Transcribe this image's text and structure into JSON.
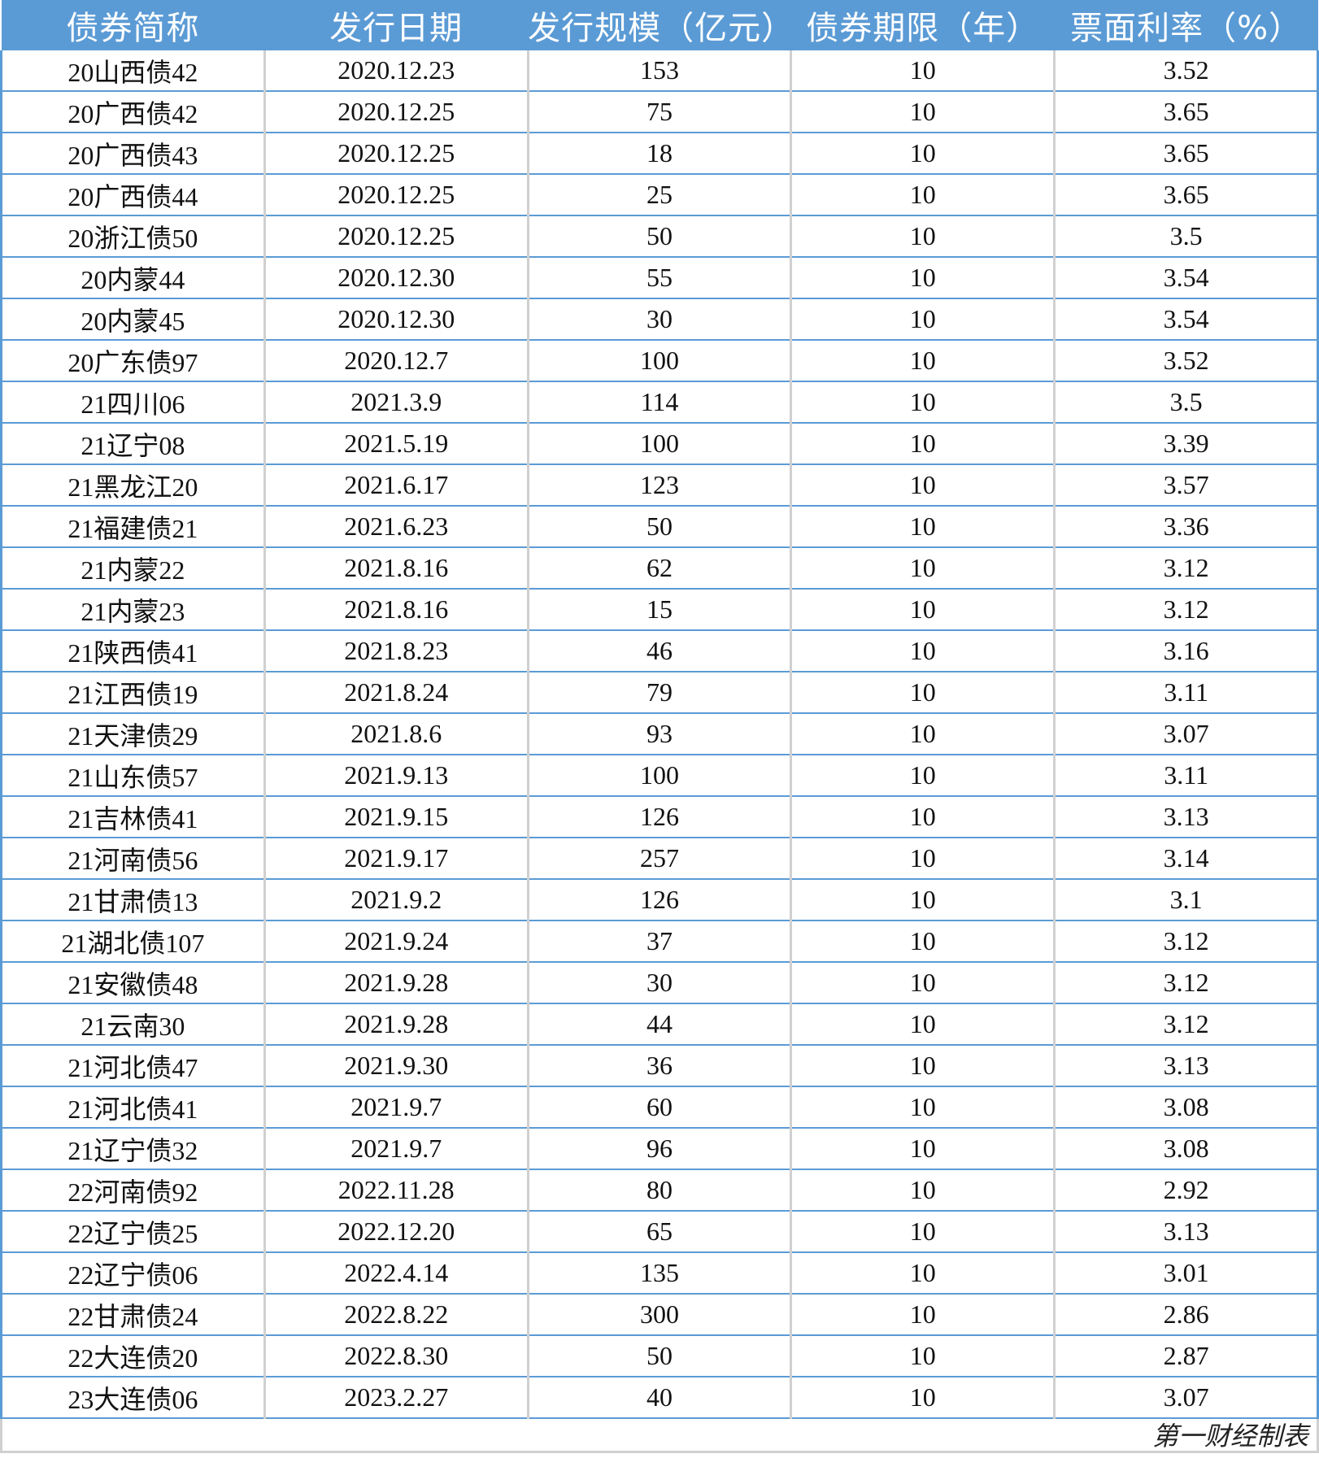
{
  "table": {
    "headers": [
      "债券简称",
      "发行日期",
      "发行规模（亿元）",
      "债券期限（年）",
      "票面利率（%）"
    ],
    "rows": [
      [
        "20山西债42",
        "2020.12.23",
        "153",
        "10",
        "3.52"
      ],
      [
        "20广西债42",
        "2020.12.25",
        "75",
        "10",
        "3.65"
      ],
      [
        "20广西债43",
        "2020.12.25",
        "18",
        "10",
        "3.65"
      ],
      [
        "20广西债44",
        "2020.12.25",
        "25",
        "10",
        "3.65"
      ],
      [
        "20浙江债50",
        "2020.12.25",
        "50",
        "10",
        "3.5"
      ],
      [
        "20内蒙44",
        "2020.12.30",
        "55",
        "10",
        "3.54"
      ],
      [
        "20内蒙45",
        "2020.12.30",
        "30",
        "10",
        "3.54"
      ],
      [
        "20广东债97",
        "2020.12.7",
        "100",
        "10",
        "3.52"
      ],
      [
        "21四川06",
        "2021.3.9",
        "114",
        "10",
        "3.5"
      ],
      [
        "21辽宁08",
        "2021.5.19",
        "100",
        "10",
        "3.39"
      ],
      [
        "21黑龙江20",
        "2021.6.17",
        "123",
        "10",
        "3.57"
      ],
      [
        "21福建债21",
        "2021.6.23",
        "50",
        "10",
        "3.36"
      ],
      [
        "21内蒙22",
        "2021.8.16",
        "62",
        "10",
        "3.12"
      ],
      [
        "21内蒙23",
        "2021.8.16",
        "15",
        "10",
        "3.12"
      ],
      [
        "21陕西债41",
        "2021.8.23",
        "46",
        "10",
        "3.16"
      ],
      [
        "21江西债19",
        "2021.8.24",
        "79",
        "10",
        "3.11"
      ],
      [
        "21天津债29",
        "2021.8.6",
        "93",
        "10",
        "3.07"
      ],
      [
        "21山东债57",
        "2021.9.13",
        "100",
        "10",
        "3.11"
      ],
      [
        "21吉林债41",
        "2021.9.15",
        "126",
        "10",
        "3.13"
      ],
      [
        "21河南债56",
        "2021.9.17",
        "257",
        "10",
        "3.14"
      ],
      [
        "21甘肃债13",
        "2021.9.2",
        "126",
        "10",
        "3.1"
      ],
      [
        "21湖北债107",
        "2021.9.24",
        "37",
        "10",
        "3.12"
      ],
      [
        "21安徽债48",
        "2021.9.28",
        "30",
        "10",
        "3.12"
      ],
      [
        "21云南30",
        "2021.9.28",
        "44",
        "10",
        "3.12"
      ],
      [
        "21河北债47",
        "2021.9.30",
        "36",
        "10",
        "3.13"
      ],
      [
        "21河北债41",
        "2021.9.7",
        "60",
        "10",
        "3.08"
      ],
      [
        "21辽宁债32",
        "2021.9.7",
        "96",
        "10",
        "3.08"
      ],
      [
        "22河南债92",
        "2022.11.28",
        "80",
        "10",
        "2.92"
      ],
      [
        "22辽宁债25",
        "2022.12.20",
        "65",
        "10",
        "3.13"
      ],
      [
        "22辽宁债06",
        "2022.4.14",
        "135",
        "10",
        "3.01"
      ],
      [
        "22甘肃债24",
        "2022.8.22",
        "300",
        "10",
        "2.86"
      ],
      [
        "22大连债20",
        "2022.8.30",
        "50",
        "10",
        "2.87"
      ],
      [
        "23大连债06",
        "2023.2.27",
        "40",
        "10",
        "3.07"
      ]
    ]
  },
  "footer": {
    "source": "第一财经制表"
  },
  "colors": {
    "header_bg": "#5b9bd5",
    "row_border": "#5b9bd5",
    "col_border": "#d0d0d0"
  }
}
